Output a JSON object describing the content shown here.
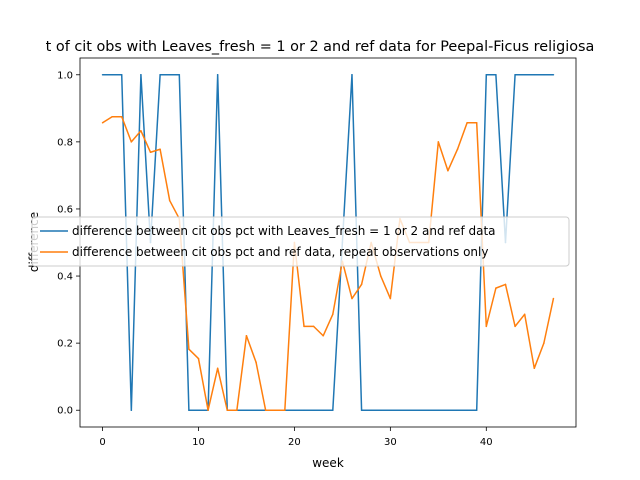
{
  "chart_data": {
    "type": "line",
    "title": "t of cit obs with Leaves_fresh = 1 or 2 and ref data for Peepal-Ficus religiosa",
    "xlabel": "week",
    "ylabel": "difference",
    "xlim": [
      -2.35,
      49.35
    ],
    "ylim": [
      -0.05,
      1.05
    ],
    "xticks": [
      0,
      10,
      20,
      30,
      40
    ],
    "yticks": [
      0.0,
      0.2,
      0.4,
      0.6,
      0.8,
      1.0
    ],
    "xtick_labels": [
      "0",
      "10",
      "20",
      "30",
      "40"
    ],
    "ytick_labels": [
      "0.0",
      "0.2",
      "0.4",
      "0.6",
      "0.8",
      "1.0"
    ],
    "grid": false,
    "legend_position": "center-right",
    "series": [
      {
        "name": "difference between cit obs pct with Leaves_fresh = 1 or 2 and ref data",
        "color": "#1f77b4",
        "x": [
          0,
          1,
          2,
          3,
          4,
          5,
          6,
          7,
          8,
          9,
          10,
          11,
          12,
          13,
          14,
          15,
          16,
          17,
          18,
          19,
          20,
          21,
          22,
          23,
          24,
          25,
          26,
          27,
          28,
          29,
          30,
          31,
          32,
          33,
          34,
          35,
          36,
          37,
          38,
          39,
          40,
          41,
          42,
          43,
          44,
          45,
          46,
          47
        ],
        "y": [
          1,
          1,
          1,
          0,
          1,
          0.5,
          1,
          1,
          1,
          0,
          0,
          0,
          1,
          0,
          0,
          0,
          0,
          0,
          0,
          0,
          0,
          0,
          0,
          0,
          0,
          0.5,
          1,
          0,
          0,
          0,
          0,
          0,
          0,
          0,
          0,
          0,
          0,
          0,
          0,
          0,
          1,
          1,
          0.5,
          1,
          1,
          1,
          1,
          1
        ]
      },
      {
        "name": "difference between cit obs pct and ref data, repeat observations only",
        "color": "#ff7f0e",
        "x": [
          0,
          1,
          2,
          3,
          4,
          5,
          6,
          7,
          8,
          9,
          10,
          11,
          12,
          13,
          14,
          15,
          16,
          17,
          18,
          19,
          20,
          21,
          22,
          23,
          24,
          25,
          26,
          27,
          28,
          29,
          30,
          31,
          32,
          33,
          34,
          35,
          36,
          37,
          38,
          39,
          40,
          41,
          42,
          43,
          44,
          45,
          46,
          47
        ],
        "y": [
          0.857,
          0.875,
          0.875,
          0.8,
          0.833,
          0.769,
          0.778,
          0.625,
          0.571,
          0.182,
          0.154,
          0.0,
          0.125,
          0.0,
          0.0,
          0.222,
          0.143,
          0.0,
          0.0,
          0.0,
          0.5,
          0.25,
          0.25,
          0.222,
          0.286,
          0.444,
          0.333,
          0.375,
          0.5,
          0.4,
          0.333,
          0.571,
          0.5,
          0.5,
          0.5,
          0.8,
          0.714,
          0.778,
          0.857,
          0.857,
          0.25,
          0.364,
          0.375,
          0.25,
          0.286,
          0.125,
          0.2,
          0.333
        ]
      }
    ]
  }
}
